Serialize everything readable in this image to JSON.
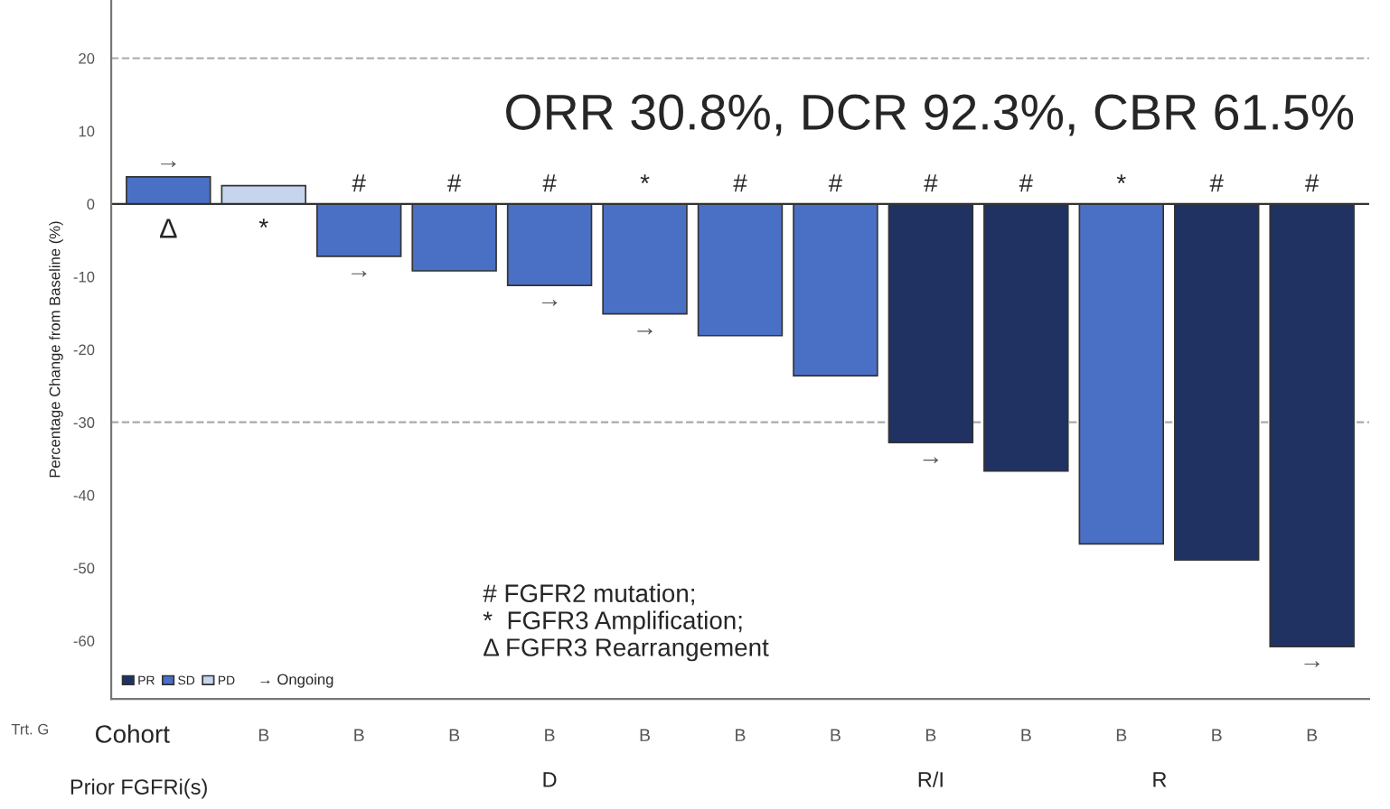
{
  "chart_data": {
    "type": "bar",
    "ylabel": "Percentage Change from Baseline (%)",
    "categories": [
      null,
      null,
      null,
      null,
      null,
      null,
      null,
      null,
      null,
      null,
      null,
      null,
      null
    ],
    "series": [
      {
        "name": "PR",
        "color": "#1f3262",
        "values": [
          null,
          null,
          null,
          null,
          null,
          null,
          null,
          null,
          -32.8,
          -36.7,
          null,
          -48.9,
          -60.8
        ],
        "value_labels": [
          null,
          null,
          null,
          null,
          null,
          null,
          null,
          null,
          "#",
          "#",
          null,
          "#",
          "#"
        ]
      },
      {
        "name": "SD",
        "color": "#4a70c6",
        "values": [
          3.7,
          null,
          -7.2,
          -9.2,
          -11.2,
          -15.1,
          -18.1,
          -23.6,
          null,
          null,
          -46.7,
          null,
          null
        ],
        "value_labels": [
          "Δ",
          null,
          "#",
          "#",
          "#",
          "*",
          "#",
          "#",
          null,
          null,
          "*",
          null,
          null
        ]
      },
      {
        "name": "PD",
        "color": "#c6d4ee",
        "values": [
          null,
          2.5,
          null,
          null,
          null,
          null,
          null,
          null,
          null,
          null,
          null,
          null,
          null
        ],
        "value_labels": [
          null,
          "*",
          null,
          null,
          null,
          null,
          null,
          null,
          null,
          null,
          null,
          null,
          null
        ]
      }
    ],
    "ylim": [
      -68,
      28
    ],
    "yticks": [
      -60,
      -50,
      -40,
      -30,
      -20,
      -10,
      0,
      10,
      20
    ],
    "ref_lines": [
      {
        "axis": "y",
        "value": 20,
        "color": "#aaaaaa",
        "line_style": "dashed"
      },
      {
        "axis": "y",
        "value": -30,
        "color": "#aaaaaa",
        "line_style": "dashed"
      }
    ],
    "legend": "bottom left",
    "grid": false,
    "annotations": [
      "ORR 30.8%, DCR 92.3%, CBR 61.5%",
      "# FGFR2 mutation;\n*  FGFR3 Amplification;\nΔ FGFR3 Rearrangement",
      "→ Ongoing",
      "Trt. G",
      "Cohort",
      "Prior FGFRi(s)",
      "D",
      "R/I",
      "R",
      "B",
      "B",
      "B",
      "B",
      "B",
      "B",
      "B",
      "B",
      "B",
      "B",
      "B",
      "B",
      "→",
      "→",
      "→",
      "→",
      "→",
      "→"
    ]
  }
}
